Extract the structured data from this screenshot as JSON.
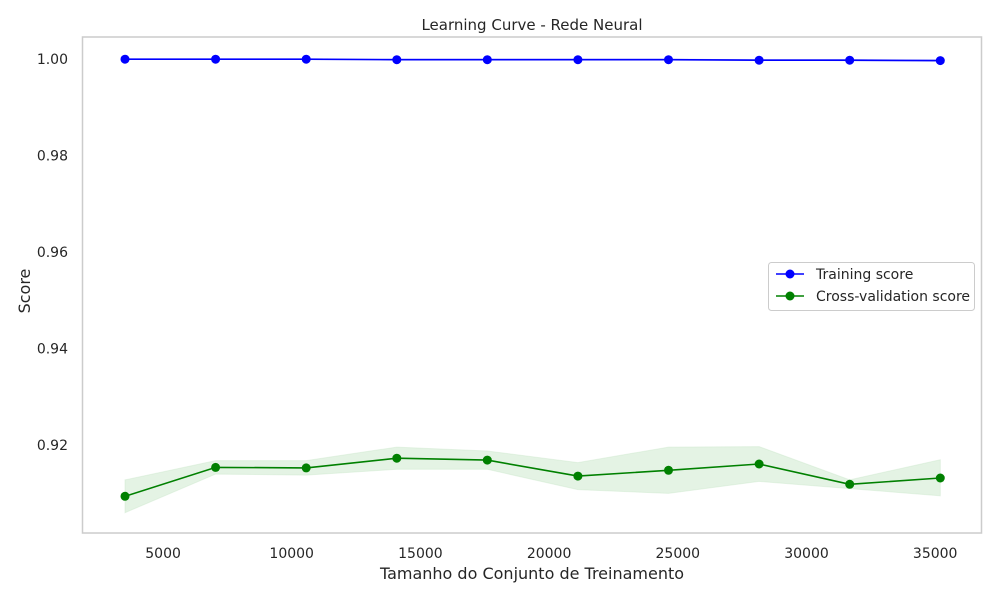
{
  "chart_data": {
    "type": "line",
    "title": "Learning Curve - Rede Neural",
    "xlabel": "Tamanho do Conjunto de Treinamento",
    "ylabel": "Score",
    "xlim": [
      1870,
      36800
    ],
    "ylim": [
      0.9018,
      1.0046
    ],
    "xticks": [
      5000,
      10000,
      15000,
      20000,
      25000,
      30000,
      35000
    ],
    "xtick_labels": [
      "5000",
      "10000",
      "15000",
      "20000",
      "25000",
      "30000",
      "35000"
    ],
    "yticks": [
      0.92,
      0.94,
      0.96,
      0.98,
      1.0
    ],
    "ytick_labels": [
      "0.92",
      "0.94",
      "0.96",
      "0.98",
      "1.00"
    ],
    "grid": false,
    "legend_position": "center-right",
    "x": [
      3520,
      7040,
      10560,
      14080,
      17600,
      21120,
      24640,
      28160,
      31680,
      35200
    ],
    "series": [
      {
        "name": "Training score",
        "color": "#0000ff",
        "values": [
          1.0,
          1.0,
          1.0,
          0.9999,
          0.9999,
          0.9999,
          0.9999,
          0.9998,
          0.9998,
          0.9997
        ],
        "band_lower": [
          1.0,
          1.0,
          1.0,
          0.9999,
          0.9999,
          0.9999,
          0.9999,
          0.9998,
          0.9997,
          0.9996
        ],
        "band_upper": [
          1.0,
          1.0,
          1.0,
          1.0,
          1.0,
          1.0,
          1.0,
          0.9999,
          0.9999,
          0.9998
        ]
      },
      {
        "name": "Cross-validation score",
        "color": "#008000",
        "band_color": "#c9e7c9",
        "values": [
          0.9094,
          0.9154,
          0.9153,
          0.9173,
          0.9169,
          0.9136,
          0.9148,
          0.9161,
          0.9119,
          0.9132
        ],
        "band_lower": [
          0.906,
          0.914,
          0.9138,
          0.915,
          0.915,
          0.9108,
          0.91,
          0.9125,
          0.911,
          0.9095
        ],
        "band_upper": [
          0.9128,
          0.9168,
          0.9168,
          0.9196,
          0.9188,
          0.9164,
          0.9196,
          0.9197,
          0.9128,
          0.917
        ]
      }
    ]
  }
}
